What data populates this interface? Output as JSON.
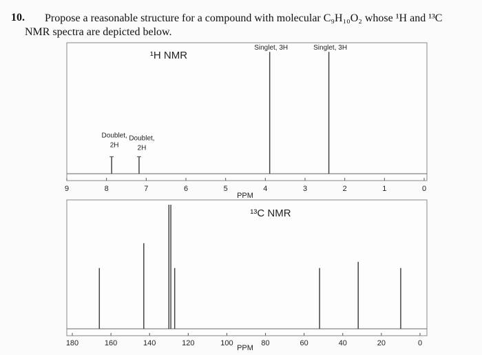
{
  "question": {
    "number": "10.",
    "text": "Propose a reasonable structure for a compound with molecular C₉H₁₀O₂ whose ¹H and ¹³C NMR spectra are depicted below."
  },
  "chart_data": [
    {
      "type": "spectrum",
      "title": "¹H NMR",
      "x_label": "PPM",
      "x": [
        7.87,
        7.18,
        3.89,
        2.4
      ],
      "values": [
        13,
        13,
        93,
        93
      ],
      "peak_labels": [
        [
          "Doublet,",
          "2H"
        ],
        [
          "Doublet,",
          "2H"
        ],
        [
          "Singlet, 3H"
        ],
        [
          "Singlet, 3H"
        ]
      ],
      "xlim": [
        9,
        0
      ],
      "xticks": [
        9,
        8,
        7,
        6,
        5,
        4,
        3,
        2,
        1,
        0
      ],
      "ylim": [
        0,
        100
      ],
      "color": "#444444"
    },
    {
      "type": "spectrum",
      "title": "¹³C NMR",
      "x_label": "PPM",
      "x": [
        166,
        143,
        130,
        129,
        127,
        52,
        32,
        10
      ],
      "values": [
        49,
        69,
        100,
        100,
        49,
        49,
        54,
        49
      ],
      "xlim": [
        180,
        0
      ],
      "xticks": [
        180,
        160,
        140,
        120,
        100,
        80,
        60,
        40,
        20,
        0
      ],
      "ylim": [
        0,
        100
      ],
      "color": "#444444"
    }
  ]
}
